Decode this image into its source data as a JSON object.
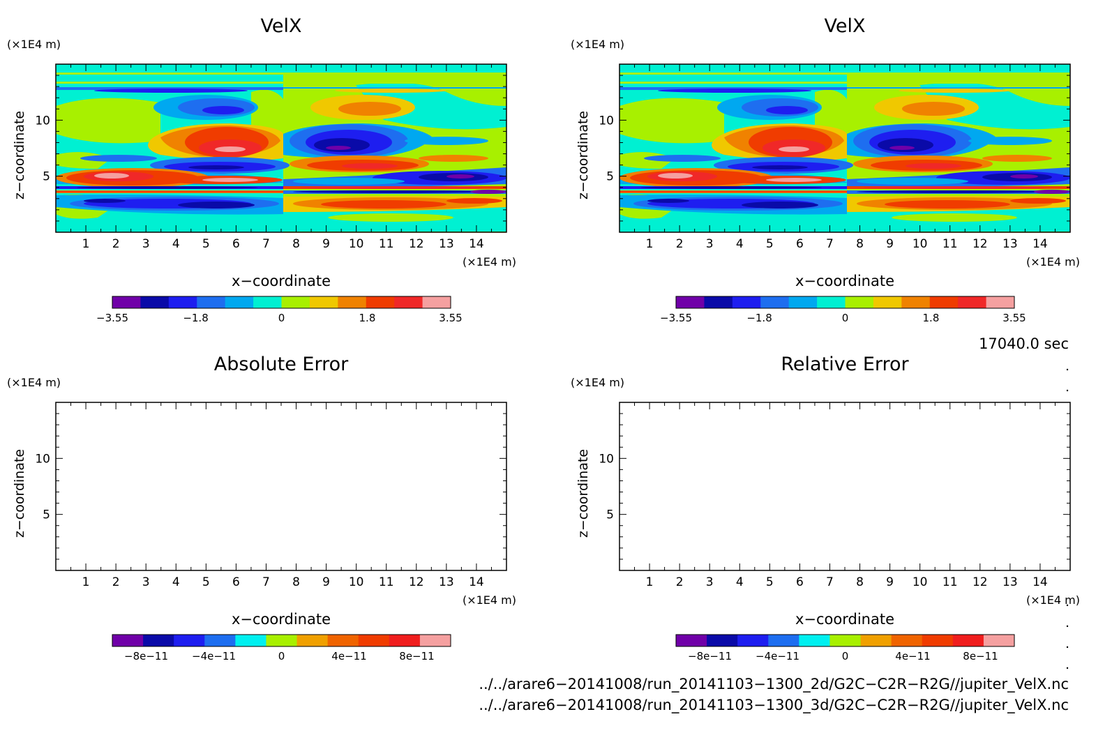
{
  "palettes": {
    "velx": [
      "#7000a8",
      "#0a0aa8",
      "#1e1ef0",
      "#1e6ef0",
      "#00a8f0",
      "#00f0d2",
      "#a8f000",
      "#f0c800",
      "#f08200",
      "#f03c00",
      "#f02828",
      "#f5a0a0"
    ],
    "error": [
      "#7000a8",
      "#0a0aa8",
      "#1e1ef0",
      "#1e6ef0",
      "#00f0f0",
      "#a8f000",
      "#f0a000",
      "#f06400",
      "#f03c00",
      "#f01e1e",
      "#f5a0a0"
    ]
  },
  "panels": [
    {
      "id": "velx-left",
      "title": "VelX",
      "unit_y": "(×1E4 m)",
      "unit_x": "(×1E4 m)",
      "xlabel": "x−coordinate",
      "ylabel": "z−coordinate",
      "xticks": [
        "1",
        "2",
        "3",
        "4",
        "5",
        "6",
        "7",
        "8",
        "9",
        "10",
        "11",
        "12",
        "13",
        "14"
      ],
      "yticks": [
        "5",
        "10"
      ],
      "colorbar": {
        "palette": "velx",
        "labels": [
          "−3.55",
          "−1.8",
          "0",
          "1.8",
          "3.55"
        ]
      },
      "has_field": true
    },
    {
      "id": "velx-right",
      "title": "VelX",
      "unit_y": "(×1E4 m)",
      "unit_x": "(×1E4 m)",
      "xlabel": "x−coordinate",
      "ylabel": "z−coordinate",
      "xticks": [
        "1",
        "2",
        "3",
        "4",
        "5",
        "6",
        "7",
        "8",
        "9",
        "10",
        "11",
        "12",
        "13",
        "14"
      ],
      "yticks": [
        "5",
        "10"
      ],
      "colorbar": {
        "palette": "velx",
        "labels": [
          "−3.55",
          "−1.8",
          "0",
          "1.8",
          "3.55"
        ]
      },
      "has_field": true
    },
    {
      "id": "abs-error",
      "title": "Absolute Error",
      "unit_y": "(×1E4 m)",
      "unit_x": "(×1E4 m)",
      "xlabel": "x−coordinate",
      "ylabel": "z−coordinate",
      "xticks": [
        "1",
        "2",
        "3",
        "4",
        "5",
        "6",
        "7",
        "8",
        "9",
        "10",
        "11",
        "12",
        "13",
        "14"
      ],
      "yticks": [
        "5",
        "10"
      ],
      "colorbar": {
        "palette": "error",
        "labels": [
          "−8e−11",
          "−4e−11",
          "0",
          "4e−11",
          "8e−11"
        ]
      },
      "has_field": false
    },
    {
      "id": "rel-error",
      "title": "Relative Error",
      "unit_y": "(×1E4 m)",
      "unit_x": "(×1E4 m)",
      "xlabel": "x−coordinate",
      "ylabel": "z−coordinate",
      "xticks": [
        "1",
        "2",
        "3",
        "4",
        "5",
        "6",
        "7",
        "8",
        "9",
        "10",
        "11",
        "12",
        "13",
        "14"
      ],
      "yticks": [
        "5",
        "10"
      ],
      "colorbar": {
        "palette": "error",
        "labels": [
          "−8e−11",
          "−4e−11",
          "0",
          "4e−11",
          "8e−11"
        ]
      },
      "has_field": false
    }
  ],
  "chart_data": [
    {
      "type": "heatmap",
      "title": "VelX",
      "xlabel": "x−coordinate (×1E4 m)",
      "ylabel": "z−coordinate (×1E4 m)",
      "xlim": [
        0,
        15
      ],
      "ylim": [
        0,
        15
      ],
      "color_range": [
        -3.55,
        3.55
      ],
      "colorbar_ticks": [
        -3.55,
        -1.8,
        0,
        1.8,
        3.55
      ],
      "features": [
        {
          "x": 5.5,
          "z": 8.5,
          "value": 3.0
        },
        {
          "x": 9.8,
          "z": 8.5,
          "value": -3.0
        },
        {
          "x": 3.0,
          "z": 4.8,
          "value": 3.2
        },
        {
          "x": 13.0,
          "z": 4.8,
          "value": -2.8
        },
        {
          "x": 5.5,
          "z": 2.3,
          "value": -2.8
        },
        {
          "x": 10.0,
          "z": 2.3,
          "value": 2.2
        },
        {
          "x": 5.2,
          "z": 11.3,
          "value": -1.8
        },
        {
          "x": 10.0,
          "z": 11.3,
          "value": 1.8
        }
      ]
    },
    {
      "type": "heatmap",
      "title": "VelX",
      "xlabel": "x−coordinate (×1E4 m)",
      "ylabel": "z−coordinate (×1E4 m)",
      "xlim": [
        0,
        15
      ],
      "ylim": [
        0,
        15
      ],
      "color_range": [
        -3.55,
        3.55
      ],
      "colorbar_ticks": [
        -3.55,
        -1.8,
        0,
        1.8,
        3.55
      ],
      "features": [
        {
          "x": 5.5,
          "z": 8.5,
          "value": 3.0
        },
        {
          "x": 9.8,
          "z": 8.5,
          "value": -3.0
        },
        {
          "x": 3.0,
          "z": 4.8,
          "value": 3.2
        },
        {
          "x": 13.0,
          "z": 4.8,
          "value": -2.8
        },
        {
          "x": 5.5,
          "z": 2.3,
          "value": -2.8
        },
        {
          "x": 10.0,
          "z": 2.3,
          "value": 2.2
        },
        {
          "x": 5.2,
          "z": 11.3,
          "value": -1.8
        },
        {
          "x": 10.0,
          "z": 11.3,
          "value": 1.8
        }
      ]
    },
    {
      "type": "heatmap",
      "title": "Absolute Error",
      "xlabel": "x−coordinate (×1E4 m)",
      "ylabel": "z−coordinate (×1E4 m)",
      "xlim": [
        0,
        15
      ],
      "ylim": [
        0,
        15
      ],
      "color_range": [
        -1e-10,
        1e-10
      ],
      "colorbar_ticks": [
        -8e-11,
        -4e-11,
        0,
        4e-11,
        8e-11
      ],
      "values": "all zero (blank field)"
    },
    {
      "type": "heatmap",
      "title": "Relative Error",
      "xlabel": "x−coordinate (×1E4 m)",
      "ylabel": "z−coordinate (×1E4 m)",
      "xlim": [
        0,
        15
      ],
      "ylim": [
        0,
        15
      ],
      "color_range": [
        -1e-10,
        1e-10
      ],
      "colorbar_ticks": [
        -8e-11,
        -4e-11,
        0,
        4e-11,
        8e-11
      ],
      "values": "all zero (blank field)"
    }
  ],
  "time_label": "17040.0 sec",
  "file_paths": [
    "../../arare6−20141008/run_20141103−1300_2d/G2C−C2R−R2G//jupiter_VelX.nc",
    "../../arare6−20141008/run_20141103−1300_3d/G2C−C2R−R2G//jupiter_VelX.nc"
  ]
}
